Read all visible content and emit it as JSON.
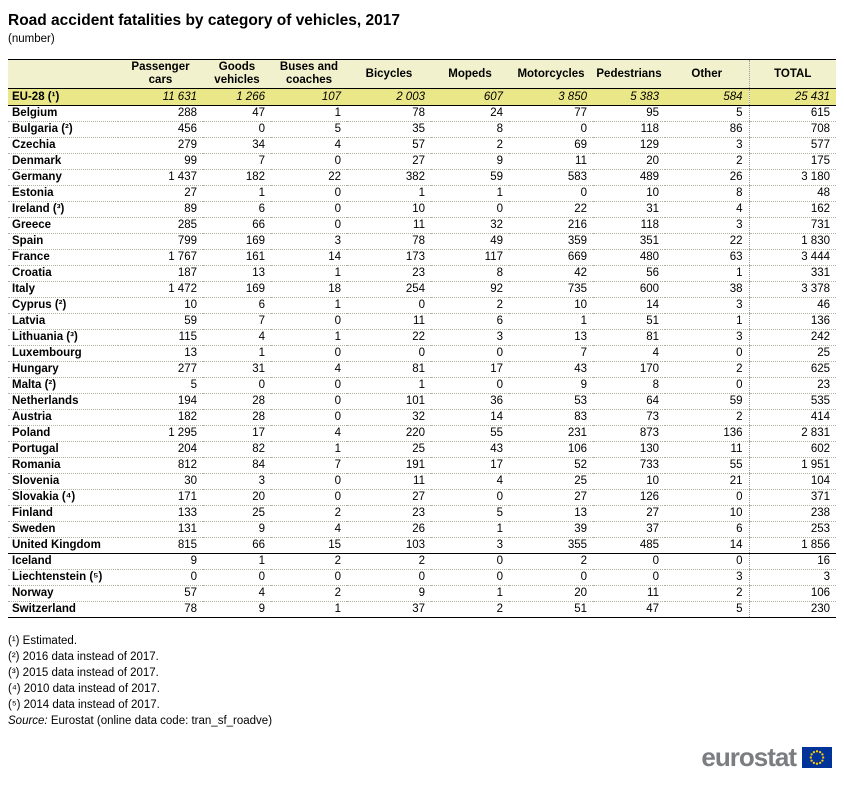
{
  "chart_data": {
    "type": "table",
    "title": "Road accident fatalities by category of vehicles, 2017",
    "unit": "(number)",
    "columns": [
      "",
      "Passenger cars",
      "Goods vehicles",
      "Buses and coaches",
      "Bicycles",
      "Mopeds",
      "Motorcycles",
      "Pedestrians",
      "Other",
      "TOTAL"
    ],
    "eu_aggregate": {
      "label": "EU-28 (¹)",
      "values": [
        "11 631",
        "1 266",
        "107",
        "2 003",
        "607",
        "3 850",
        "5 383",
        "584",
        "25 431"
      ]
    },
    "rows": [
      {
        "label": "Belgium",
        "values": [
          "288",
          "47",
          "1",
          "78",
          "24",
          "77",
          "95",
          "5",
          "615"
        ]
      },
      {
        "label": "Bulgaria (²)",
        "values": [
          "456",
          "0",
          "5",
          "35",
          "8",
          "0",
          "118",
          "86",
          "708"
        ]
      },
      {
        "label": "Czechia",
        "values": [
          "279",
          "34",
          "4",
          "57",
          "2",
          "69",
          "129",
          "3",
          "577"
        ]
      },
      {
        "label": "Denmark",
        "values": [
          "99",
          "7",
          "0",
          "27",
          "9",
          "11",
          "20",
          "2",
          "175"
        ]
      },
      {
        "label": "Germany",
        "values": [
          "1 437",
          "182",
          "22",
          "382",
          "59",
          "583",
          "489",
          "26",
          "3 180"
        ]
      },
      {
        "label": "Estonia",
        "values": [
          "27",
          "1",
          "0",
          "1",
          "1",
          "0",
          "10",
          "8",
          "48"
        ]
      },
      {
        "label": "Ireland (³)",
        "values": [
          "89",
          "6",
          "0",
          "10",
          "0",
          "22",
          "31",
          "4",
          "162"
        ]
      },
      {
        "label": "Greece",
        "values": [
          "285",
          "66",
          "0",
          "11",
          "32",
          "216",
          "118",
          "3",
          "731"
        ]
      },
      {
        "label": "Spain",
        "values": [
          "799",
          "169",
          "3",
          "78",
          "49",
          "359",
          "351",
          "22",
          "1 830"
        ]
      },
      {
        "label": "France",
        "values": [
          "1 767",
          "161",
          "14",
          "173",
          "117",
          "669",
          "480",
          "63",
          "3 444"
        ]
      },
      {
        "label": "Croatia",
        "values": [
          "187",
          "13",
          "1",
          "23",
          "8",
          "42",
          "56",
          "1",
          "331"
        ]
      },
      {
        "label": "Italy",
        "values": [
          "1 472",
          "169",
          "18",
          "254",
          "92",
          "735",
          "600",
          "38",
          "3 378"
        ]
      },
      {
        "label": "Cyprus (²)",
        "values": [
          "10",
          "6",
          "1",
          "0",
          "2",
          "10",
          "14",
          "3",
          "46"
        ]
      },
      {
        "label": "Latvia",
        "values": [
          "59",
          "7",
          "0",
          "11",
          "6",
          "1",
          "51",
          "1",
          "136"
        ]
      },
      {
        "label": "Lithuania (³)",
        "values": [
          "115",
          "4",
          "1",
          "22",
          "3",
          "13",
          "81",
          "3",
          "242"
        ]
      },
      {
        "label": "Luxembourg",
        "values": [
          "13",
          "1",
          "0",
          "0",
          "0",
          "7",
          "4",
          "0",
          "25"
        ]
      },
      {
        "label": "Hungary",
        "values": [
          "277",
          "31",
          "4",
          "81",
          "17",
          "43",
          "170",
          "2",
          "625"
        ]
      },
      {
        "label": "Malta (²)",
        "values": [
          "5",
          "0",
          "0",
          "1",
          "0",
          "9",
          "8",
          "0",
          "23"
        ]
      },
      {
        "label": "Netherlands",
        "values": [
          "194",
          "28",
          "0",
          "101",
          "36",
          "53",
          "64",
          "59",
          "535"
        ]
      },
      {
        "label": "Austria",
        "values": [
          "182",
          "28",
          "0",
          "32",
          "14",
          "83",
          "73",
          "2",
          "414"
        ]
      },
      {
        "label": "Poland",
        "values": [
          "1 295",
          "17",
          "4",
          "220",
          "55",
          "231",
          "873",
          "136",
          "2 831"
        ]
      },
      {
        "label": "Portugal",
        "values": [
          "204",
          "82",
          "1",
          "25",
          "43",
          "106",
          "130",
          "11",
          "602"
        ]
      },
      {
        "label": "Romania",
        "values": [
          "812",
          "84",
          "7",
          "191",
          "17",
          "52",
          "733",
          "55",
          "1 951"
        ]
      },
      {
        "label": "Slovenia",
        "values": [
          "30",
          "3",
          "0",
          "11",
          "4",
          "25",
          "10",
          "21",
          "104"
        ]
      },
      {
        "label": "Slovakia (⁴)",
        "values": [
          "171",
          "20",
          "0",
          "27",
          "0",
          "27",
          "126",
          "0",
          "371"
        ]
      },
      {
        "label": "Finland",
        "values": [
          "133",
          "25",
          "2",
          "23",
          "5",
          "13",
          "27",
          "10",
          "238"
        ]
      },
      {
        "label": "Sweden",
        "values": [
          "131",
          "9",
          "4",
          "26",
          "1",
          "39",
          "37",
          "6",
          "253"
        ]
      },
      {
        "label": "United Kingdom",
        "values": [
          "815",
          "66",
          "15",
          "103",
          "3",
          "355",
          "485",
          "14",
          "1 856"
        ],
        "separator_after": true
      },
      {
        "label": "Iceland",
        "values": [
          "9",
          "1",
          "2",
          "2",
          "0",
          "2",
          "0",
          "0",
          "16"
        ]
      },
      {
        "label": "Liechtenstein (⁵)",
        "values": [
          "0",
          "0",
          "0",
          "0",
          "0",
          "0",
          "0",
          "3",
          "3"
        ]
      },
      {
        "label": "Norway",
        "values": [
          "57",
          "4",
          "2",
          "9",
          "1",
          "20",
          "11",
          "2",
          "106"
        ]
      },
      {
        "label": "Switzerland",
        "values": [
          "78",
          "9",
          "1",
          "37",
          "2",
          "51",
          "47",
          "5",
          "230"
        ]
      }
    ],
    "footnotes": [
      "(¹) Estimated.",
      "(²) 2016 data instead of 2017.",
      "(³) 2015 data instead of 2017.",
      "(⁴) 2010 data instead of 2017.",
      "(⁵) 2014 data instead of 2017."
    ],
    "source_prefix": "Source:",
    "source_text": "Eurostat (online data code: tran_sf_roadve)"
  },
  "logo": {
    "text": "eurostat"
  },
  "colors": {
    "header_bg": "#f2f1cd",
    "eu_row_bg": "#eae789",
    "flag_blue": "#003399",
    "star_yellow": "#ffcc00",
    "logo_gray": "#7b7d80"
  }
}
